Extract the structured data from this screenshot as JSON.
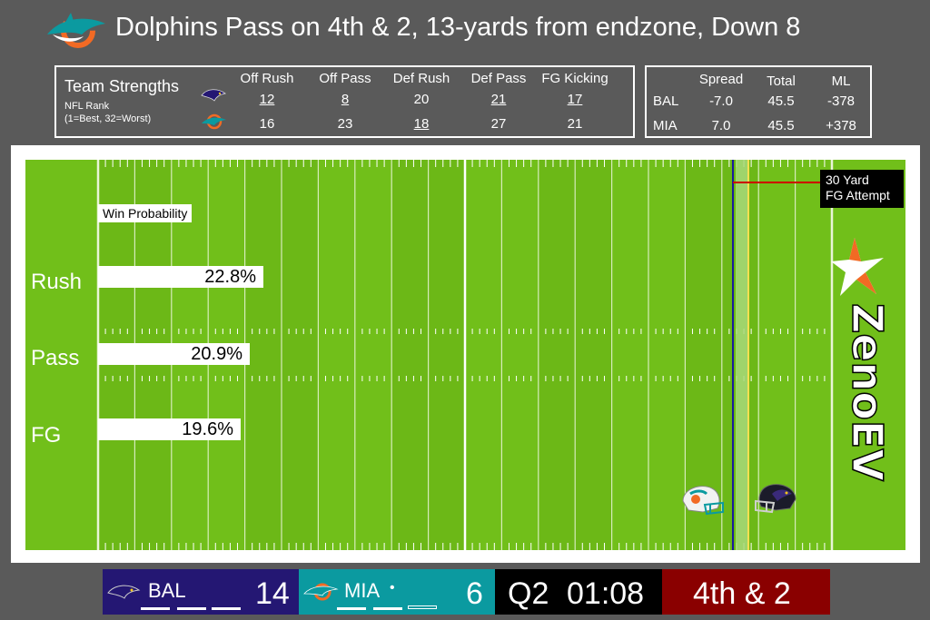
{
  "title": "Dolphins Pass on 4th & 2, 13-yards from endzone, Down 8",
  "strengths": {
    "title": "Team Strengths",
    "subtitle_line1": "NFL Rank",
    "subtitle_line2": "(1=Best, 32=Worst)",
    "headers": [
      "Off Rush",
      "Off Pass",
      "Def Rush",
      "Def Pass",
      "FG Kicking"
    ],
    "bal": [
      "12",
      "8",
      "20",
      "21",
      "17"
    ],
    "mia": [
      "16",
      "23",
      "18",
      "27",
      "21"
    ]
  },
  "odds": {
    "headers": [
      "Spread",
      "Total",
      "ML"
    ],
    "bal": {
      "team": "BAL",
      "spread": "-7.0",
      "total": "45.5",
      "ml": "-378"
    },
    "mia": {
      "team": "MIA",
      "spread": "7.0",
      "total": "45.5",
      "ml": "+378"
    }
  },
  "field": {
    "win_prob_label": "Win Probability",
    "options": [
      {
        "label": "Rush",
        "value": "22.8%",
        "prob": 0.228
      },
      {
        "label": "Pass",
        "value": "20.9%",
        "prob": 0.209
      },
      {
        "label": "FG",
        "value": "19.6%",
        "prob": 0.196
      }
    ],
    "fg_line1": "30 Yard",
    "fg_line2": "FG Attempt",
    "brand": "ZenoEV"
  },
  "scoreboard": {
    "home_team": "BAL",
    "home_score": "14",
    "away_team": "MIA",
    "away_score": "6",
    "quarter": "Q2",
    "clock": "01:08",
    "down": "4th & 2"
  },
  "colors": {
    "field": "#71bf1a",
    "ravens": "#241773",
    "dolphins": "#0b9aa0",
    "dolphins_orange": "#f26a24",
    "down_box": "#8a0000",
    "los": "#1a1aa0"
  },
  "icons": [
    "dolphins-logo",
    "ravens-logo",
    "dolphins-helmet",
    "ravens-helmet",
    "zeno-star-icon"
  ]
}
